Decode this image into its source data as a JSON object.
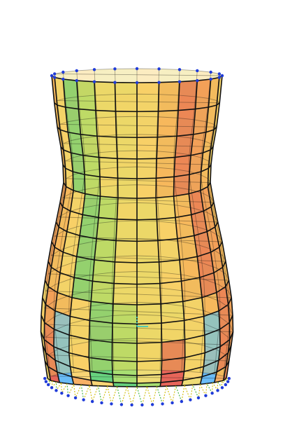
{
  "model": {
    "rings": 16,
    "segments": 24,
    "shell_colors": [
      "#2b4fd6",
      "#3fa9f5",
      "#49c9e8",
      "#3cc45a",
      "#8fd64a",
      "#e9d24f",
      "#f7c94e",
      "#f59a3a",
      "#ee6a32",
      "#e03a2a"
    ],
    "mesh_color": "#111111",
    "node_color": "#1f3bd9",
    "support_color": "#d4c21a",
    "support_alt_color": "#4bb74b",
    "axis_color": "#25c7c7"
  }
}
